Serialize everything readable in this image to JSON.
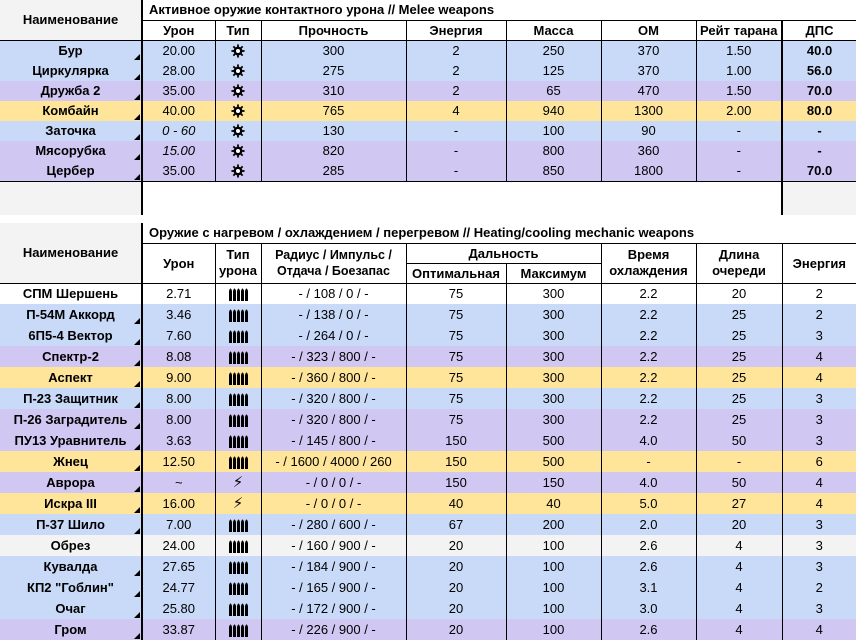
{
  "melee": {
    "title": "Активное оружие контактного урона  //  Melee weapons",
    "name_header": "Наименование",
    "columns": [
      "Урон",
      "Тип",
      "Прочность",
      "Энергия",
      "Масса",
      "ОМ",
      "Рейт тарана",
      "ДПС"
    ],
    "rows": [
      {
        "name": "Бур",
        "dmg": "20.00",
        "dur": "300",
        "energy": "2",
        "mass": "250",
        "om": "370",
        "ram": "1.50",
        "dps": "40.0",
        "color": "blue"
      },
      {
        "name": "Циркулярка",
        "dmg": "28.00",
        "dur": "275",
        "energy": "2",
        "mass": "125",
        "om": "370",
        "ram": "1.00",
        "dps": "56.0",
        "color": "blue"
      },
      {
        "name": "Дружба 2",
        "dmg": "35.00",
        "dur": "310",
        "energy": "2",
        "mass": "65",
        "om": "470",
        "ram": "1.50",
        "dps": "70.0",
        "color": "purple"
      },
      {
        "name": "Комбайн",
        "dmg": "40.00",
        "dur": "765",
        "energy": "4",
        "mass": "940",
        "om": "1300",
        "ram": "2.00",
        "dps": "80.0",
        "color": "yellow"
      },
      {
        "name": "Заточка",
        "dmg": "0 - 60",
        "dur": "130",
        "energy": "-",
        "mass": "100",
        "om": "90",
        "ram": "-",
        "dps": "-",
        "color": "blue",
        "italic": true
      },
      {
        "name": "Мясорубка",
        "dmg": "15.00",
        "dur": "820",
        "energy": "-",
        "mass": "800",
        "om": "360",
        "ram": "-",
        "dps": "-",
        "color": "purple",
        "italic": true
      },
      {
        "name": "Цербер",
        "dmg": "35.00",
        "dur": "285",
        "energy": "-",
        "mass": "850",
        "om": "1800",
        "ram": "-",
        "dps": "70.0",
        "color": "purple"
      }
    ]
  },
  "heat": {
    "title": "Оружие с нагревом / охлаждением / перегревом  //  Heating/cooling mechanic weapons",
    "name_header": "Наименование",
    "h_dmg": "Урон",
    "h_type": "Тип урона",
    "h_radius": "Радиус / Импульс / Отдача / Боезапас",
    "h_range": "Дальность",
    "h_opt": "Оптимальная",
    "h_max": "Максимум",
    "h_cool": "Время охлаждения",
    "h_burst": "Длина очереди",
    "h_energy": "Энергия",
    "rows": [
      {
        "name": "СПМ Шершень",
        "dmg": "2.71",
        "type": "bullets",
        "rad": "- / 108 / 0 / -",
        "opt": "75",
        "max": "300",
        "cool": "2.2",
        "burst": "20",
        "energy": "2",
        "color": "white"
      },
      {
        "name": "П-54М Аккорд",
        "dmg": "3.46",
        "type": "bullets",
        "rad": "- / 138 / 0 / -",
        "opt": "75",
        "max": "300",
        "cool": "2.2",
        "burst": "25",
        "energy": "2",
        "color": "blue"
      },
      {
        "name": "6П5-4 Вектор",
        "dmg": "7.60",
        "type": "bullets",
        "rad": "- / 264 / 0 / -",
        "opt": "75",
        "max": "300",
        "cool": "2.2",
        "burst": "25",
        "energy": "3",
        "color": "blue"
      },
      {
        "name": "Спектр-2",
        "dmg": "8.08",
        "type": "bullets",
        "rad": "- / 323 / 800 / -",
        "opt": "75",
        "max": "300",
        "cool": "2.2",
        "burst": "25",
        "energy": "4",
        "color": "purple"
      },
      {
        "name": "Аспект",
        "dmg": "9.00",
        "type": "bullets",
        "rad": "- / 360 / 800 / -",
        "opt": "75",
        "max": "300",
        "cool": "2.2",
        "burst": "25",
        "energy": "4",
        "color": "yellow"
      },
      {
        "name": "П-23 Защитник",
        "dmg": "8.00",
        "type": "bullets",
        "rad": "- / 320 / 800 / -",
        "opt": "75",
        "max": "300",
        "cool": "2.2",
        "burst": "25",
        "energy": "3",
        "color": "blue"
      },
      {
        "name": "П-26 Заградитель",
        "dmg": "8.00",
        "type": "bullets",
        "rad": "- / 320 / 800 / -",
        "opt": "75",
        "max": "300",
        "cool": "2.2",
        "burst": "25",
        "energy": "3",
        "color": "purple"
      },
      {
        "name": "ПУ13 Уравнитель",
        "dmg": "3.63",
        "type": "bullets",
        "rad": "- / 145 / 800 / -",
        "opt": "150",
        "max": "500",
        "cool": "4.0",
        "burst": "50",
        "energy": "3",
        "color": "purple"
      },
      {
        "name": "Жнец",
        "dmg": "12.50",
        "type": "bullets",
        "rad": "- / 1600 / 4000 / 260",
        "opt": "150",
        "max": "500",
        "cool": "-",
        "burst": "-",
        "energy": "6",
        "color": "yellow"
      },
      {
        "name": "Аврора",
        "dmg": "~",
        "type": "energy",
        "rad": "- / 0 / 0 / -",
        "opt": "150",
        "max": "150",
        "cool": "4.0",
        "burst": "50",
        "energy": "4",
        "color": "purple"
      },
      {
        "name": "Искра III",
        "dmg": "16.00",
        "type": "energy",
        "rad": "- / 0 / 0 / -",
        "opt": "40",
        "max": "40",
        "cool": "5.0",
        "burst": "27",
        "energy": "4",
        "color": "yellow"
      },
      {
        "name": "П-37 Шило",
        "dmg": "7.00",
        "type": "bullets",
        "rad": "- / 280 / 600 / -",
        "opt": "67",
        "max": "200",
        "cool": "2.0",
        "burst": "20",
        "energy": "3",
        "color": "blue"
      },
      {
        "name": "Обрез",
        "dmg": "24.00",
        "type": "bullets",
        "rad": "- / 160 / 900 / -",
        "opt": "20",
        "max": "100",
        "cool": "2.6",
        "burst": "4",
        "energy": "3",
        "color": "grey"
      },
      {
        "name": "Кувалда",
        "dmg": "27.65",
        "type": "bullets",
        "rad": "- / 184 / 900 / -",
        "opt": "20",
        "max": "100",
        "cool": "2.6",
        "burst": "4",
        "energy": "3",
        "color": "blue"
      },
      {
        "name": "КП2 \"Гоблин\"",
        "dmg": "24.77",
        "type": "bullets",
        "rad": "- / 165 / 900 / -",
        "opt": "20",
        "max": "100",
        "cool": "3.1",
        "burst": "4",
        "energy": "2",
        "color": "blue"
      },
      {
        "name": "Очаг",
        "dmg": "25.80",
        "type": "bullets",
        "rad": "- / 172 / 900 / -",
        "opt": "20",
        "max": "100",
        "cool": "3.0",
        "burst": "4",
        "energy": "3",
        "color": "blue"
      },
      {
        "name": "Гром",
        "dmg": "33.87",
        "type": "bullets",
        "rad": "- / 226 / 900 / -",
        "opt": "20",
        "max": "100",
        "cool": "2.6",
        "burst": "4",
        "energy": "4",
        "color": "purple"
      }
    ]
  }
}
